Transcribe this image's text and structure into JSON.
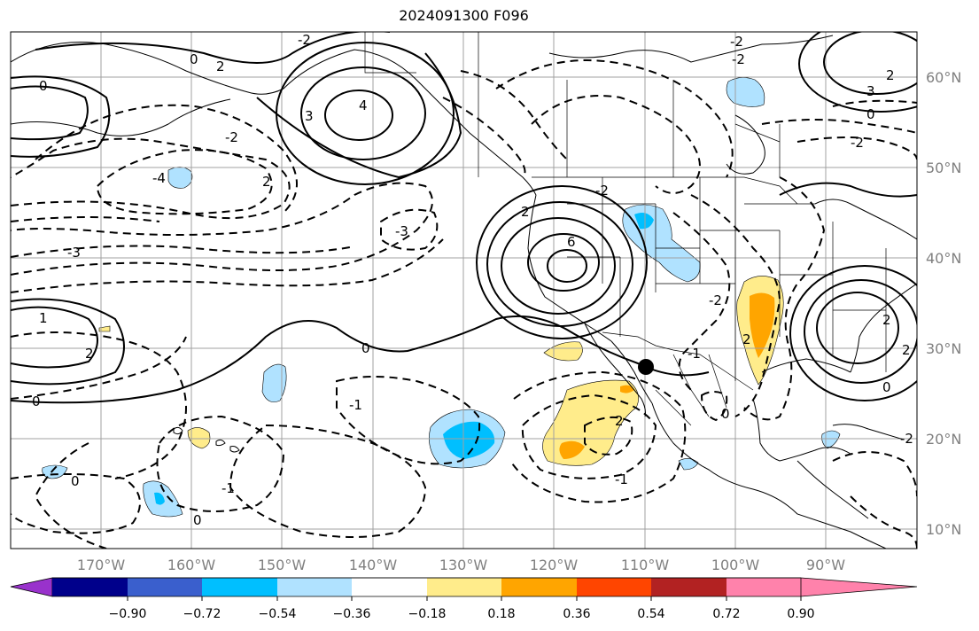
{
  "title": "2024091300 F096",
  "latitude_labels": [
    "60°N",
    "50°N",
    "40°N",
    "30°N",
    "20°N",
    "10°N"
  ],
  "longitude_labels": [
    "170°W",
    "160°W",
    "150°W",
    "140°W",
    "130°W",
    "120°W",
    "110°W",
    "100°W",
    "90°W"
  ],
  "colorbar": {
    "colors": [
      "#9932cc",
      "#00008b",
      "#3a5fcd",
      "#00bfff",
      "#b0e2ff",
      "#ffffff",
      "#ffec8b",
      "#ffa500",
      "#ff4500",
      "#b22222",
      "#ff82ab"
    ],
    "ticks": [
      "−0.90",
      "−0.72",
      "−0.54",
      "−0.36",
      "−0.18",
      "0.18",
      "0.36",
      "0.54",
      "0.72",
      "0.90"
    ]
  },
  "contour_labels": [
    "0",
    "2",
    "-2",
    "4",
    "3",
    "-4",
    "-2",
    "2",
    "-3",
    "-3",
    "1",
    "2",
    "0",
    "6",
    "2",
    "0",
    "-1",
    "-2",
    "2",
    "-2",
    "-1",
    "-1",
    "0",
    "2",
    "-2",
    "3",
    "0",
    "-2",
    "2",
    "2",
    "0",
    "0",
    "-1",
    "-2",
    "0",
    "-2",
    "2",
    "0"
  ],
  "marker": "station-dot"
}
